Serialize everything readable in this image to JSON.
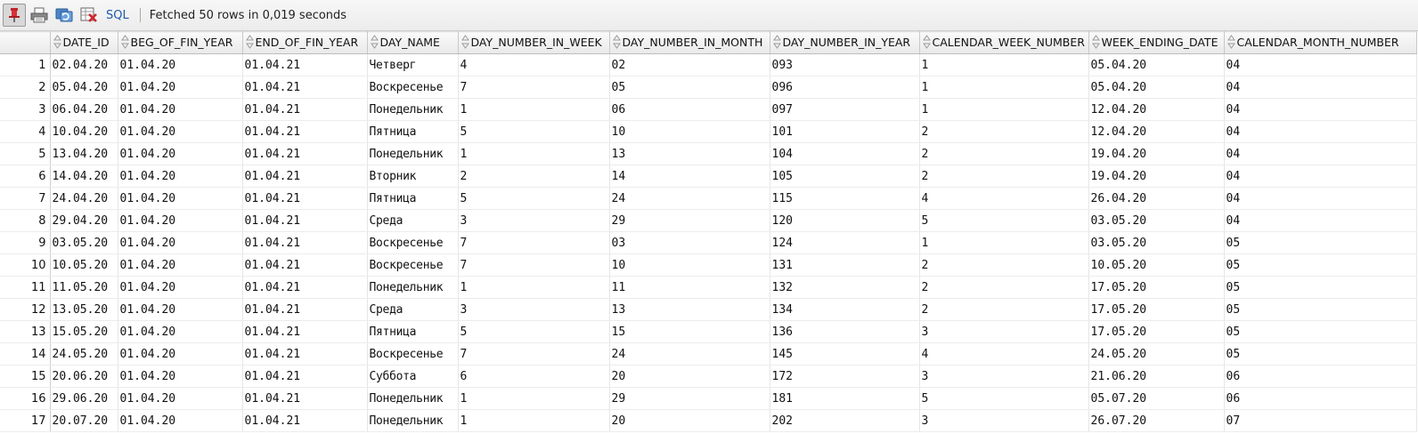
{
  "toolbar": {
    "pin_icon": "pin-icon",
    "print_icon": "print-icon",
    "refresh_icon": "refresh-icon",
    "cancel_icon": "cancel-icon",
    "sql_label": "SQL",
    "status_text": "Fetched 50 rows in 0,019 seconds"
  },
  "grid": {
    "columns": [
      "DATE_ID",
      "BEG_OF_FIN_YEAR",
      "END_OF_FIN_YEAR",
      "DAY_NAME",
      "DAY_NUMBER_IN_WEEK",
      "DAY_NUMBER_IN_MONTH",
      "DAY_NUMBER_IN_YEAR",
      "CALENDAR_WEEK_NUMBER",
      "WEEK_ENDING_DATE",
      "CALENDAR_MONTH_NUMBER"
    ],
    "rows": [
      [
        "1",
        "02.04.20",
        "01.04.20",
        "01.04.21",
        "Четверг",
        "4",
        "02",
        "093",
        "1",
        "05.04.20",
        "04"
      ],
      [
        "2",
        "05.04.20",
        "01.04.20",
        "01.04.21",
        "Воскресенье",
        "7",
        "05",
        "096",
        "1",
        "05.04.20",
        "04"
      ],
      [
        "3",
        "06.04.20",
        "01.04.20",
        "01.04.21",
        "Понедельник",
        "1",
        "06",
        "097",
        "1",
        "12.04.20",
        "04"
      ],
      [
        "4",
        "10.04.20",
        "01.04.20",
        "01.04.21",
        "Пятница",
        "5",
        "10",
        "101",
        "2",
        "12.04.20",
        "04"
      ],
      [
        "5",
        "13.04.20",
        "01.04.20",
        "01.04.21",
        "Понедельник",
        "1",
        "13",
        "104",
        "2",
        "19.04.20",
        "04"
      ],
      [
        "6",
        "14.04.20",
        "01.04.20",
        "01.04.21",
        "Вторник",
        "2",
        "14",
        "105",
        "2",
        "19.04.20",
        "04"
      ],
      [
        "7",
        "24.04.20",
        "01.04.20",
        "01.04.21",
        "Пятница",
        "5",
        "24",
        "115",
        "4",
        "26.04.20",
        "04"
      ],
      [
        "8",
        "29.04.20",
        "01.04.20",
        "01.04.21",
        "Среда",
        "3",
        "29",
        "120",
        "5",
        "03.05.20",
        "04"
      ],
      [
        "9",
        "03.05.20",
        "01.04.20",
        "01.04.21",
        "Воскресенье",
        "7",
        "03",
        "124",
        "1",
        "03.05.20",
        "05"
      ],
      [
        "10",
        "10.05.20",
        "01.04.20",
        "01.04.21",
        "Воскресенье",
        "7",
        "10",
        "131",
        "2",
        "10.05.20",
        "05"
      ],
      [
        "11",
        "11.05.20",
        "01.04.20",
        "01.04.21",
        "Понедельник",
        "1",
        "11",
        "132",
        "2",
        "17.05.20",
        "05"
      ],
      [
        "12",
        "13.05.20",
        "01.04.20",
        "01.04.21",
        "Среда",
        "3",
        "13",
        "134",
        "2",
        "17.05.20",
        "05"
      ],
      [
        "13",
        "15.05.20",
        "01.04.20",
        "01.04.21",
        "Пятница",
        "5",
        "15",
        "136",
        "3",
        "17.05.20",
        "05"
      ],
      [
        "14",
        "24.05.20",
        "01.04.20",
        "01.04.21",
        "Воскресенье",
        "7",
        "24",
        "145",
        "4",
        "24.05.20",
        "05"
      ],
      [
        "15",
        "20.06.20",
        "01.04.20",
        "01.04.21",
        "Суббота",
        "6",
        "20",
        "172",
        "3",
        "21.06.20",
        "06"
      ],
      [
        "16",
        "29.06.20",
        "01.04.20",
        "01.04.21",
        "Понедельник",
        "1",
        "29",
        "181",
        "5",
        "05.07.20",
        "06"
      ],
      [
        "17",
        "20.07.20",
        "01.04.20",
        "01.04.21",
        "Понедельник",
        "1",
        "20",
        "202",
        "3",
        "26.07.20",
        "07"
      ]
    ]
  }
}
